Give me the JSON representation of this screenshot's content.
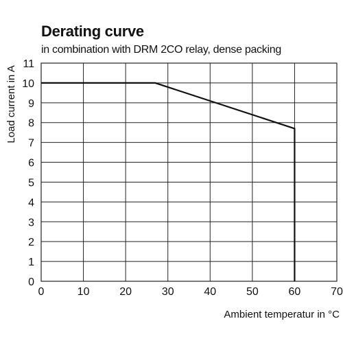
{
  "chart_data": {
    "type": "line",
    "title": "Derating curve",
    "subtitle": "in combination with DRM 2CO relay, dense packing",
    "xlabel": "Ambient temperatur in °C",
    "ylabel": "Load  current in A",
    "xlim": [
      0,
      70
    ],
    "ylim": [
      0,
      11
    ],
    "xticks": [
      0,
      10,
      20,
      30,
      40,
      50,
      60,
      70
    ],
    "yticks": [
      0,
      1,
      2,
      3,
      4,
      5,
      6,
      7,
      8,
      9,
      10,
      11
    ],
    "grid": true,
    "series": [
      {
        "x": [
          0,
          27,
          60,
          60
        ],
        "y": [
          10,
          10,
          7.7,
          0
        ]
      }
    ],
    "colors": {
      "line": "#111111",
      "grid": "#222222"
    }
  }
}
